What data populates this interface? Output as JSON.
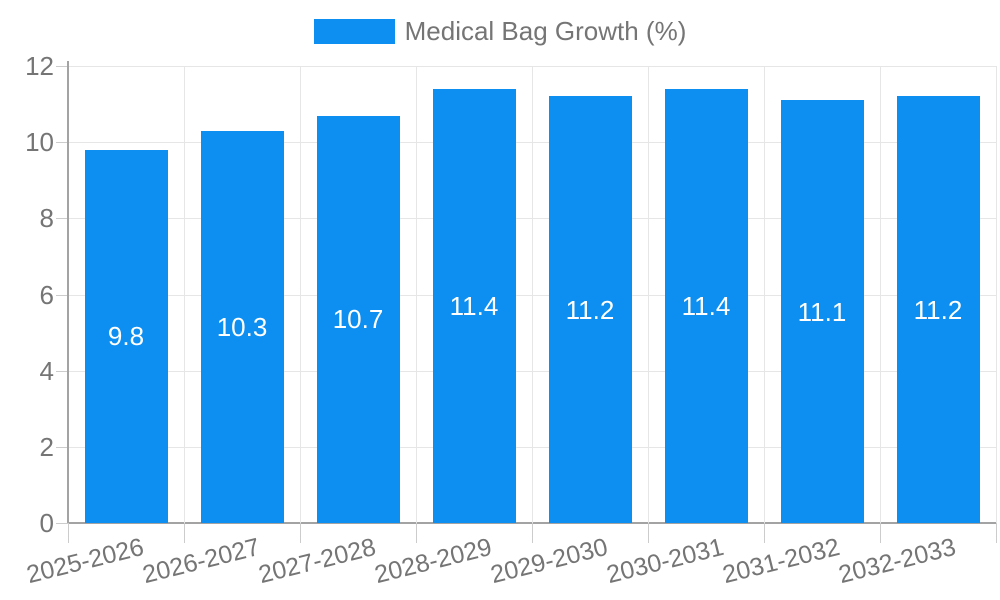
{
  "chart_data": {
    "type": "bar",
    "legend": {
      "label": "Medical Bag Growth (%)",
      "position": "top"
    },
    "categories": [
      "2025-2026",
      "2026-2027",
      "2027-2028",
      "2028-2029",
      "2029-2030",
      "2030-2031",
      "2031-2032",
      "2032-2033"
    ],
    "series": [
      {
        "name": "Medical Bag Growth (%)",
        "values": [
          9.8,
          10.3,
          10.7,
          11.4,
          11.2,
          11.4,
          11.1,
          11.2
        ],
        "value_labels": [
          "9.8",
          "10.3",
          "10.7",
          "11.4",
          "11.2",
          "11.4",
          "11.1",
          "11.2"
        ]
      }
    ],
    "ylim": [
      0,
      12
    ],
    "yticks": [
      0,
      2,
      4,
      6,
      8,
      10,
      12
    ],
    "grid": true,
    "colors": {
      "bar": "#0d8ff2",
      "bar_label": "#ffffff",
      "axis_text": "#757575",
      "grid": "#e6e6e6",
      "axis_line": "#a3a3a3",
      "tick": "#cccccc"
    }
  }
}
